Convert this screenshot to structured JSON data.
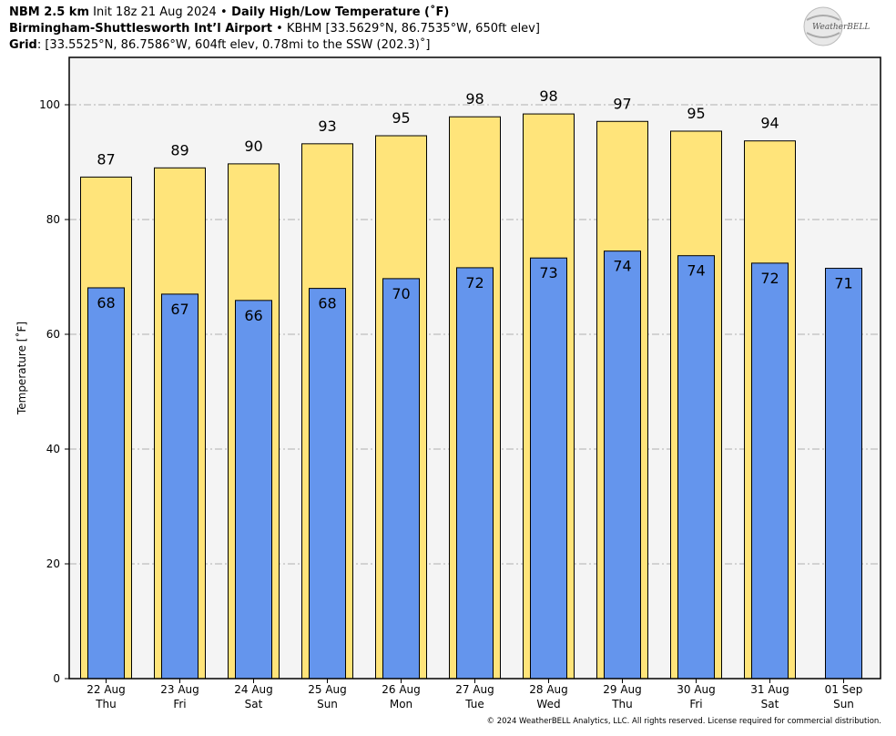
{
  "header": {
    "line1_bold1": "NBM 2.5 km",
    "line1_init": " Init 18z 21 Aug 2024 ",
    "line1_sep": "•",
    "line1_bold2": " Daily High/Low Temperature (˚F)",
    "line2_bold": "Birmingham-Shuttlesworth Int’l Airport",
    "line2_sep": " • ",
    "line2_rest": "KBHM [33.5629°N, 86.7535°W, 650ft elev]",
    "line3_bold": "Grid",
    "line3_rest": ": [33.5525°N, 86.7586°W, 604ft elev, 0.78mi to the SSW (202.3)˚]"
  },
  "logo": {
    "text": "WeatherBELL"
  },
  "copyright": "© 2024 WeatherBELL Analytics, LLC. All rights reserved. License required for commercial distribution.",
  "chart_data": {
    "type": "bar",
    "categories": [
      "22 Aug|Thu",
      "23 Aug|Fri",
      "24 Aug|Sat",
      "25 Aug|Sun",
      "26 Aug|Mon",
      "27 Aug|Tue",
      "28 Aug|Wed",
      "29 Aug|Thu",
      "30 Aug|Fri",
      "31 Aug|Sat",
      "01 Sep|Sun"
    ],
    "series": [
      {
        "key": "high",
        "values": [
          87.4,
          89.0,
          89.7,
          93.2,
          94.6,
          97.9,
          98.4,
          97.1,
          95.4,
          93.7,
          null
        ],
        "labels": [
          "87",
          "89",
          "90",
          "93",
          "95",
          "98",
          "98",
          "97",
          "95",
          "94",
          ""
        ],
        "color": "#FFE47A"
      },
      {
        "key": "low",
        "values": [
          68.1,
          67.0,
          65.9,
          68.0,
          69.7,
          71.6,
          73.3,
          74.5,
          73.7,
          72.4,
          71.5
        ],
        "labels": [
          "68",
          "67",
          "66",
          "68",
          "70",
          "72",
          "73",
          "74",
          "74",
          "72",
          "71"
        ],
        "color": "#6495ED"
      }
    ],
    "ylabel": "Temperature [˚F]",
    "ylim": [
      0,
      100
    ],
    "yticks": [
      0,
      20,
      40,
      60,
      80,
      100
    ],
    "grid": true,
    "background": "#F4F4F4"
  }
}
